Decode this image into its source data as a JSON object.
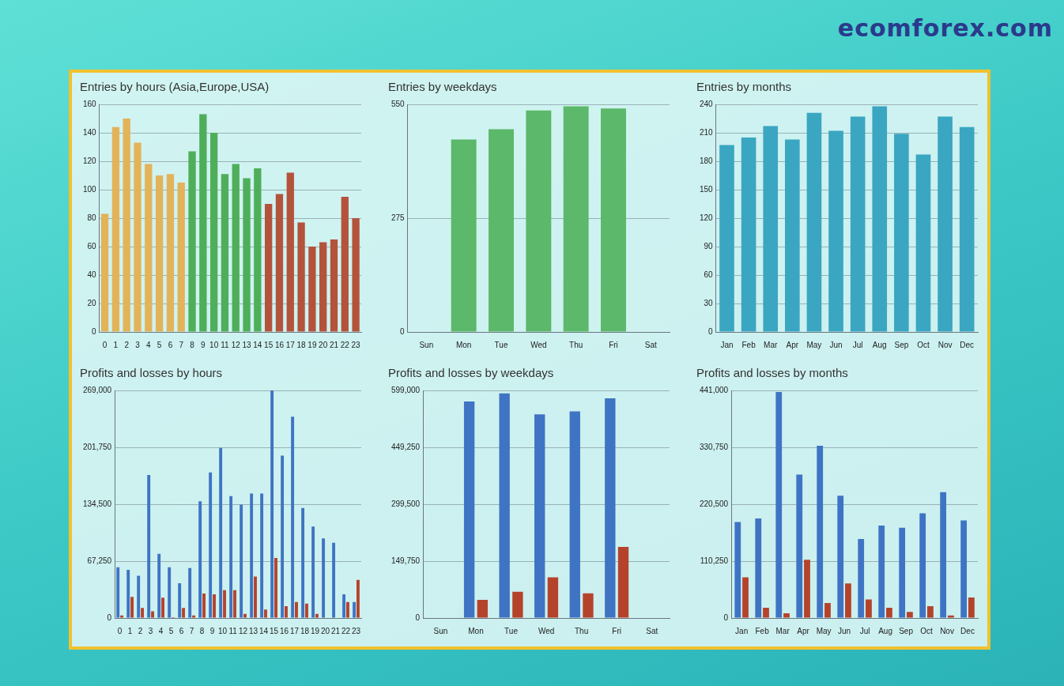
{
  "brand": "ecomforex.com",
  "chart_data": [
    {
      "type": "bar",
      "title": "Entries by hours (Asia,Europe,USA)",
      "categories": [
        "0",
        "1",
        "2",
        "3",
        "4",
        "5",
        "6",
        "7",
        "8",
        "9",
        "10",
        "11",
        "12",
        "13",
        "14",
        "15",
        "16",
        "17",
        "18",
        "19",
        "20",
        "21",
        "22",
        "23"
      ],
      "values": [
        83,
        144,
        150,
        133,
        118,
        110,
        111,
        105,
        127,
        153,
        140,
        111,
        118,
        108,
        115,
        90,
        97,
        112,
        77,
        60,
        63,
        65,
        95,
        80
      ],
      "colors": [
        "#e3b35a",
        "#e3b35a",
        "#e3b35a",
        "#e3b35a",
        "#e3b35a",
        "#e3b35a",
        "#e3b35a",
        "#e3b35a",
        "#4fae5a",
        "#4fae5a",
        "#4fae5a",
        "#4fae5a",
        "#4fae5a",
        "#4fae5a",
        "#4fae5a",
        "#b4533c",
        "#b4533c",
        "#b4533c",
        "#b4533c",
        "#b4533c",
        "#b4533c",
        "#b4533c",
        "#b4533c",
        "#b4533c"
      ],
      "ylim": [
        0,
        160
      ],
      "yticks": [
        0,
        20,
        40,
        60,
        80,
        100,
        120,
        140,
        160
      ],
      "grid": true
    },
    {
      "type": "bar",
      "title": "Entries by weekdays",
      "categories": [
        "Sun",
        "Mon",
        "Tue",
        "Wed",
        "Thu",
        "Fri",
        "Sat"
      ],
      "values": [
        0,
        465,
        490,
        535,
        545,
        540,
        0
      ],
      "color": "#5cb86a",
      "ylim": [
        0,
        550
      ],
      "yticks": [
        0,
        275,
        550
      ],
      "grid": true
    },
    {
      "type": "bar",
      "title": "Entries by months",
      "categories": [
        "Jan",
        "Feb",
        "Mar",
        "Apr",
        "May",
        "Jun",
        "Jul",
        "Aug",
        "Sep",
        "Oct",
        "Nov",
        "Dec"
      ],
      "values": [
        197,
        205,
        217,
        203,
        231,
        212,
        227,
        238,
        209,
        187,
        227,
        216
      ],
      "color": "#3aa6c2",
      "ylim": [
        0,
        240
      ],
      "yticks": [
        0,
        30,
        60,
        90,
        120,
        150,
        180,
        210,
        240
      ],
      "grid": true
    },
    {
      "type": "bar",
      "title": "Profits and losses by hours",
      "categories": [
        "0",
        "1",
        "2",
        "3",
        "4",
        "5",
        "6",
        "7",
        "8",
        "9",
        "10",
        "11",
        "12",
        "13",
        "14",
        "15",
        "16",
        "17",
        "18",
        "19",
        "20",
        "21",
        "22",
        "23"
      ],
      "series": [
        {
          "color": "#3f74c4",
          "values": [
            60000,
            57000,
            50000,
            169000,
            76000,
            60000,
            41000,
            59000,
            138000,
            172000,
            201000,
            144000,
            134000,
            147000,
            147000,
            269000,
            192000,
            238000,
            130000,
            108000,
            94000,
            89000,
            28000,
            19000
          ]
        },
        {
          "color": "#b5432c",
          "values": [
            3000,
            25000,
            12000,
            8000,
            24000,
            1000,
            12000,
            3000,
            29000,
            28000,
            33000,
            33000,
            5000,
            49000,
            10000,
            71000,
            14000,
            19000,
            17000,
            5000,
            0,
            0,
            19000,
            45000
          ]
        }
      ],
      "ylim": [
        0,
        269000
      ],
      "yticks": [
        0,
        67250,
        134500,
        201750,
        269000
      ],
      "grid": true
    },
    {
      "type": "bar",
      "title": "Profits and losses by weekdays",
      "categories": [
        "Sun",
        "Mon",
        "Tue",
        "Wed",
        "Thu",
        "Fri",
        "Sat"
      ],
      "series": [
        {
          "color": "#3f74c4",
          "values": [
            0,
            570000,
            591000,
            536000,
            544000,
            578000,
            0
          ]
        },
        {
          "color": "#b5432c",
          "values": [
            0,
            48000,
            69000,
            107000,
            65000,
            187000,
            0
          ]
        }
      ],
      "ylim": [
        0,
        599000
      ],
      "yticks": [
        0,
        149750,
        299500,
        449250,
        599000
      ],
      "grid": true
    },
    {
      "type": "bar",
      "title": "Profits and losses by months",
      "categories": [
        "Jan",
        "Feb",
        "Mar",
        "Apr",
        "May",
        "Jun",
        "Jul",
        "Aug",
        "Sep",
        "Oct",
        "Nov",
        "Dec"
      ],
      "series": [
        {
          "color": "#3f74c4",
          "values": [
            186000,
            193000,
            438000,
            278000,
            334000,
            237000,
            153000,
            179000,
            175000,
            203000,
            244000,
            189000
          ]
        },
        {
          "color": "#b5432c",
          "values": [
            79000,
            20000,
            9000,
            113000,
            29000,
            67000,
            36000,
            20000,
            12000,
            23000,
            5000,
            40000
          ]
        }
      ],
      "ylim": [
        0,
        441000
      ],
      "yticks": [
        0,
        110250,
        220500,
        330750,
        441000
      ],
      "grid": true
    }
  ]
}
